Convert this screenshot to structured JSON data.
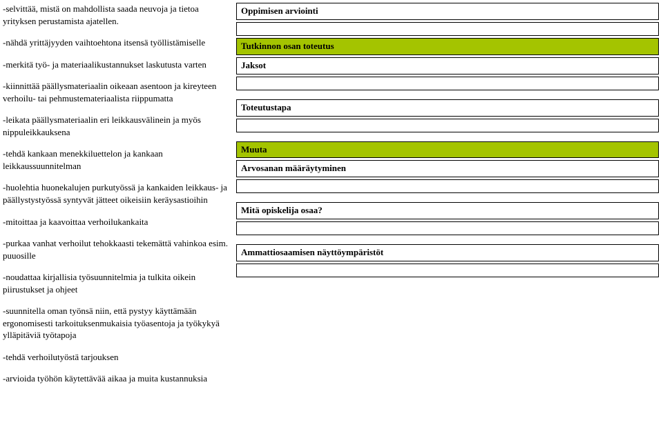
{
  "left": {
    "p1": "-selvittää, mistä on mahdollista saada neuvoja ja tietoa yrityksen perustamista ajatellen.",
    "p2": "-nähdä yrittäjyyden vaihtoehtona itsensä työllistämiselle",
    "p3": "-merkitä työ- ja materiaalikustannukset laskutusta varten",
    "p4": "-kiinnittää päällysmateriaalin oikeaan asentoon ja kireyteen verhoilu- tai pehmustemateriaalista riippumatta",
    "p5": "-leikata päällysmateriaalin eri leikkausvälinein ja myös nippuleikkauksena",
    "p6": "-tehdä kankaan menekkiluettelon ja kankaan leikkaussuunnitelman",
    "p7": "-huolehtia huonekalujen purkutyössä ja kankaiden leikkaus- ja päällystystyössä syntyvät jätteet oikeisiin keräysastioihin",
    "p8": "-mitoittaa ja kaavoittaa verhoilukankaita",
    "p9": "-purkaa vanhat verhoilut tehokkaasti tekemättä vahinkoa esim. puuosille",
    "p10": "-noudattaa kirjallisia työsuunnitelmia ja tulkita oikein piirustukset ja ohjeet",
    "p11": "-suunnitella oman työnsä niin, että pystyy käyttämään ergonomisesti tarkoituksenmukaisia työasentoja ja työkykyä ylläpitäviä työtapoja",
    "p12": "-tehdä verhoilutyöstä tarjouksen",
    "p13": "-arvioida työhön käytettävää aikaa ja muita kustannuksia"
  },
  "right": {
    "h1": "Oppimisen arviointi",
    "h2": "Tutkinnon osan toteutus",
    "h3": "Jaksot",
    "h4": "Toteutustapa",
    "h5": "Muuta",
    "h6": "Arvosanan määräytyminen",
    "h7": "Mitä opiskelija osaa?",
    "h8": "Ammattiosaamisen näyttöympäristöt"
  }
}
